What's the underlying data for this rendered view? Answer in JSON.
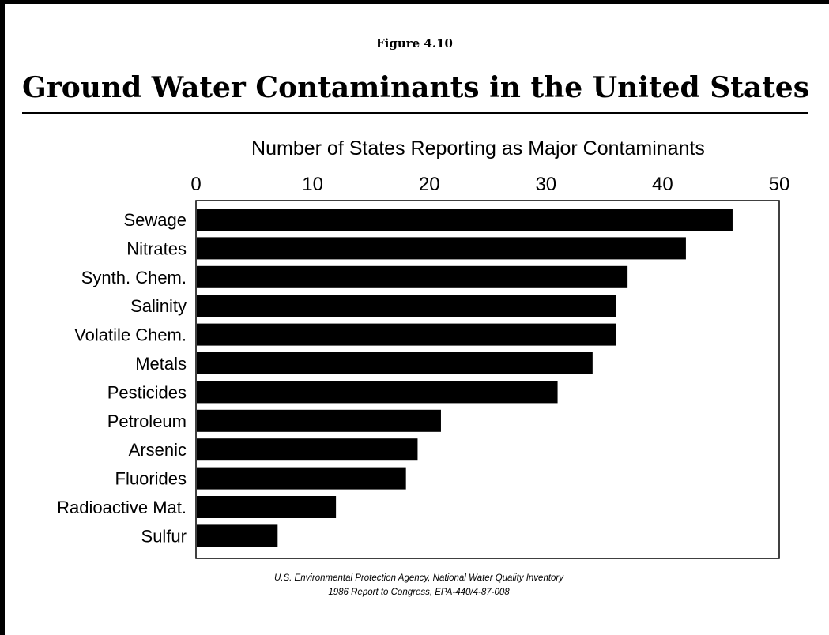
{
  "figure_label": "Figure 4.10",
  "title": "Ground Water Contaminants in the United States",
  "source": {
    "line1": "U.S. Environmental Protection Agency, National Water Quality Inventory",
    "line2": "1986 Report to Congress, EPA-440/4-87-008"
  },
  "chart_data": {
    "type": "bar",
    "orientation": "horizontal",
    "title": "Number of States Reporting as Major Contaminants",
    "xlabel": "",
    "ylabel": "",
    "xlim": [
      0,
      50
    ],
    "x_ticks": [
      0,
      10,
      20,
      30,
      40,
      50
    ],
    "axis_position": "top",
    "grid": false,
    "bar_color": "#000000",
    "categories": [
      "Sewage",
      "Nitrates",
      "Synth. Chem.",
      "Salinity",
      "Volatile Chem.",
      "Metals",
      "Pesticides",
      "Petroleum",
      "Arsenic",
      "Fluorides",
      "Radioactive Mat.",
      "Sulfur"
    ],
    "values": [
      46,
      42,
      37,
      36,
      36,
      34,
      31,
      21,
      19,
      18,
      12,
      7
    ]
  }
}
